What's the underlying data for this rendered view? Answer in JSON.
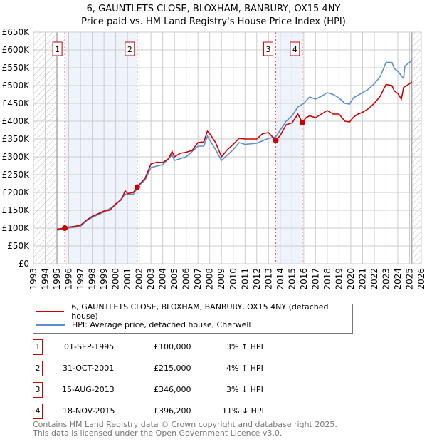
{
  "chart_data": {
    "type": "line",
    "title": "6, GAUNTLETS CLOSE, BLOXHAM, BANBURY, OX15 4NY",
    "subtitle": "Price paid vs. HM Land Registry's House Price Index (HPI)",
    "xlim": [
      1993,
      2026
    ],
    "ylim": [
      0,
      650000
    ],
    "x_ticks": [
      "1993",
      "1994",
      "1995",
      "1996",
      "1997",
      "1998",
      "1999",
      "2000",
      "2001",
      "2002",
      "2003",
      "2004",
      "2005",
      "2006",
      "2007",
      "2008",
      "2009",
      "2010",
      "2011",
      "2012",
      "2013",
      "2014",
      "2015",
      "2016",
      "2017",
      "2018",
      "2019",
      "2020",
      "2021",
      "2022",
      "2023",
      "2024",
      "2025",
      "2026"
    ],
    "y_ticks": [
      {
        "v": 0,
        "label": "£0"
      },
      {
        "v": 50000,
        "label": "£50K"
      },
      {
        "v": 100000,
        "label": "£100K"
      },
      {
        "v": 150000,
        "label": "£150K"
      },
      {
        "v": 200000,
        "label": "£200K"
      },
      {
        "v": 250000,
        "label": "£250K"
      },
      {
        "v": 300000,
        "label": "£300K"
      },
      {
        "v": 350000,
        "label": "£350K"
      },
      {
        "v": 400000,
        "label": "£400K"
      },
      {
        "v": 450000,
        "label": "£450K"
      },
      {
        "v": 500000,
        "label": "£500K"
      },
      {
        "v": 550000,
        "label": "£550K"
      },
      {
        "v": 600000,
        "label": "£600K"
      },
      {
        "v": 650000,
        "label": "£650K"
      }
    ],
    "grid": true,
    "series": [
      {
        "name": "6, GAUNTLETS CLOSE, BLOXHAM, BANBURY, OX15 4NY (detached house)",
        "color": "#cc0000",
        "x": [
          1995,
          1995.67,
          1996,
          1996.5,
          1997,
          1997.5,
          1998,
          1998.5,
          1999,
          1999.5,
          2000,
          2000.5,
          2000.8,
          2001,
          2001.5,
          2001.83,
          2002,
          2002.5,
          2003,
          2003.5,
          2004,
          2004.5,
          2004.8,
          2005,
          2005.5,
          2006,
          2006.5,
          2007,
          2007.5,
          2007.8,
          2008,
          2008.5,
          2009,
          2009.5,
          2010,
          2010.5,
          2011,
          2011.5,
          2012,
          2012.5,
          2013,
          2013.62,
          2014,
          2014.5,
          2015,
          2015.5,
          2015.88,
          2016.2,
          2016.5,
          2017,
          2017.5,
          2018,
          2018.5,
          2019,
          2019.5,
          2019.9,
          2020.2,
          2020.5,
          2021,
          2021.5,
          2022,
          2022.5,
          2023,
          2023.5,
          2023.7,
          2024,
          2024.3,
          2024.5,
          2025,
          2025.2
        ],
        "values": [
          97000,
          100000,
          103000,
          105000,
          108000,
          122000,
          133000,
          140000,
          148000,
          150000,
          168000,
          180000,
          205000,
          197000,
          200000,
          215000,
          222000,
          240000,
          280000,
          285000,
          284000,
          295000,
          315000,
          300000,
          310000,
          313000,
          318000,
          340000,
          342000,
          372000,
          365000,
          340000,
          300000,
          320000,
          335000,
          352000,
          350000,
          350000,
          350000,
          365000,
          368000,
          346000,
          360000,
          390000,
          395000,
          420000,
          396200,
          410000,
          415000,
          410000,
          420000,
          430000,
          420000,
          420000,
          400000,
          398000,
          410000,
          418000,
          425000,
          435000,
          450000,
          470000,
          503000,
          500000,
          485000,
          478000,
          462000,
          495000,
          505000,
          510000
        ]
      },
      {
        "name": "HPI: Average price, detached house, Cherwell",
        "color": "#5b8fd0",
        "x": [
          1995,
          1996,
          1997,
          1997.5,
          1998,
          1999,
          2000,
          2000.8,
          2001.5,
          2002,
          2002.5,
          2003,
          2004,
          2004.8,
          2005,
          2006,
          2007,
          2007.5,
          2007.8,
          2008.5,
          2009,
          2009.5,
          2010,
          2010.5,
          2011,
          2012,
          2012.5,
          2013,
          2013.62,
          2014,
          2014.5,
          2015,
          2015.5,
          2016,
          2016.5,
          2017,
          2017.5,
          2018,
          2018.5,
          2019,
          2019.5,
          2019.9,
          2020.2,
          2021,
          2021.5,
          2022,
          2022.5,
          2023,
          2023.5,
          2023.7,
          2024,
          2024.5,
          2024.6,
          2025,
          2025.2
        ],
        "values": [
          94000,
          100000,
          105000,
          120000,
          130000,
          145000,
          165000,
          195000,
          195000,
          220000,
          235000,
          270000,
          278000,
          305000,
          290000,
          300000,
          330000,
          330000,
          358000,
          320000,
          290000,
          305000,
          320000,
          340000,
          335000,
          338000,
          345000,
          352000,
          356000,
          375000,
          400000,
          415000,
          440000,
          450000,
          468000,
          462000,
          470000,
          480000,
          475000,
          465000,
          450000,
          448000,
          465000,
          480000,
          490000,
          505000,
          525000,
          565000,
          565000,
          548000,
          540000,
          520000,
          555000,
          565000,
          572000
        ]
      }
    ],
    "sales": [
      {
        "n": "1",
        "x": 1995.67,
        "value": 100000,
        "date": "01-SEP-1995",
        "price": "£100,000",
        "hpi": "3% ↑ HPI"
      },
      {
        "n": "2",
        "x": 2001.83,
        "value": 215000,
        "date": "31-OCT-2001",
        "price": "£215,000",
        "hpi": "4% ↑ HPI"
      },
      {
        "n": "3",
        "x": 2013.62,
        "value": 346000,
        "date": "15-AUG-2013",
        "price": "£346,000",
        "hpi": "3% ↓ HPI"
      },
      {
        "n": "4",
        "x": 2015.88,
        "value": 396200,
        "date": "18-NOV-2015",
        "price": "£396,200",
        "hpi": "11% ↓ HPI"
      }
    ],
    "shaded": [
      [
        1995.67,
        2001.83
      ],
      [
        2013.62,
        2015.88
      ]
    ],
    "hatched": [
      [
        1993,
        1995
      ],
      [
        2025.2,
        2026
      ]
    ],
    "legend_placement": "below"
  },
  "footer": {
    "line1": "Contains HM Land Registry data © Crown copyright and database right 2025.",
    "line2": "This data is licensed under the Open Government Licence v3.0."
  }
}
